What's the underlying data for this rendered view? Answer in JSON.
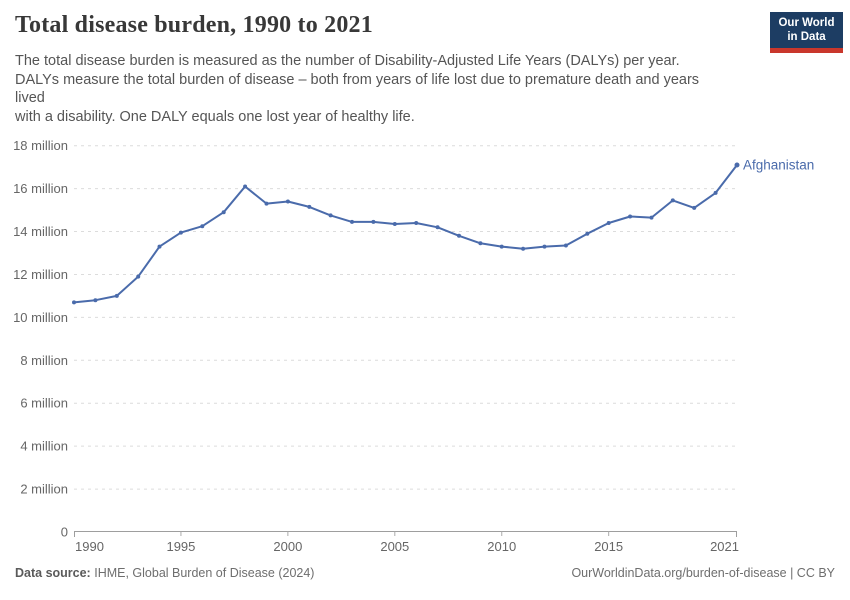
{
  "header": {
    "title": "Total disease burden, 1990 to 2021",
    "subtitle_lines": [
      "The total disease burden is measured as the number of Disability-Adjusted Life Years (DALYs) per year.",
      "DALYs measure the total burden of disease – both from years of life lost due to premature death and years",
      "lived",
      "with a disability. One DALY equals one lost year of healthy life."
    ],
    "logo_line1": "Our World",
    "logo_line2": "in Data"
  },
  "chart_data": {
    "type": "line",
    "title": "Total disease burden, 1990 to 2021",
    "unit": "DALYs per year, millions",
    "x": [
      1990,
      1991,
      1992,
      1993,
      1994,
      1995,
      1996,
      1997,
      1998,
      1999,
      2000,
      2001,
      2002,
      2003,
      2004,
      2005,
      2006,
      2007,
      2008,
      2009,
      2010,
      2011,
      2012,
      2013,
      2014,
      2015,
      2016,
      2017,
      2018,
      2019,
      2020,
      2021
    ],
    "series": [
      {
        "name": "Afghanistan",
        "color": "#4a6bab",
        "values": [
          10.7,
          10.8,
          11.0,
          11.9,
          13.3,
          13.95,
          14.25,
          14.9,
          16.1,
          15.3,
          15.4,
          15.15,
          14.75,
          14.45,
          14.45,
          14.35,
          14.4,
          14.2,
          13.8,
          13.45,
          13.3,
          13.2,
          13.3,
          13.35,
          13.9,
          14.4,
          14.7,
          14.65,
          15.45,
          15.1,
          15.8,
          17.1
        ]
      }
    ],
    "end_label": "Afghanistan",
    "xlim": [
      1990,
      2021
    ],
    "ylim": [
      0,
      18
    ],
    "x_ticks": [
      1990,
      1995,
      2000,
      2005,
      2010,
      2015,
      2021
    ],
    "y_ticks": [
      {
        "v": 0,
        "label": "0"
      },
      {
        "v": 2,
        "label": "2 million"
      },
      {
        "v": 4,
        "label": "4 million"
      },
      {
        "v": 6,
        "label": "6 million"
      },
      {
        "v": 8,
        "label": "8 million"
      },
      {
        "v": 10,
        "label": "10 million"
      },
      {
        "v": 12,
        "label": "12 million"
      },
      {
        "v": 14,
        "label": "14 million"
      },
      {
        "v": 16,
        "label": "16 million"
      },
      {
        "v": 18,
        "label": "18 million"
      }
    ],
    "grid": "horizontal-dashed",
    "legend_position": "end-of-line"
  },
  "footer": {
    "source_label": "Data source:",
    "source_text": "IHME, Global Burden of Disease (2024)",
    "credit": "OurWorldinData.org/burden-of-disease | CC BY"
  },
  "colors": {
    "accent": "#4a6bab",
    "grid": "#dcdcdc",
    "axis": "#9e9e9e",
    "tick": "#ababab",
    "tick_text": "#666666",
    "title_text": "#383838",
    "subtitle_text": "#555555",
    "footer_text": "#6e6e6e",
    "logo_bg": "#1d3d63",
    "logo_bar": "#c9372c"
  }
}
